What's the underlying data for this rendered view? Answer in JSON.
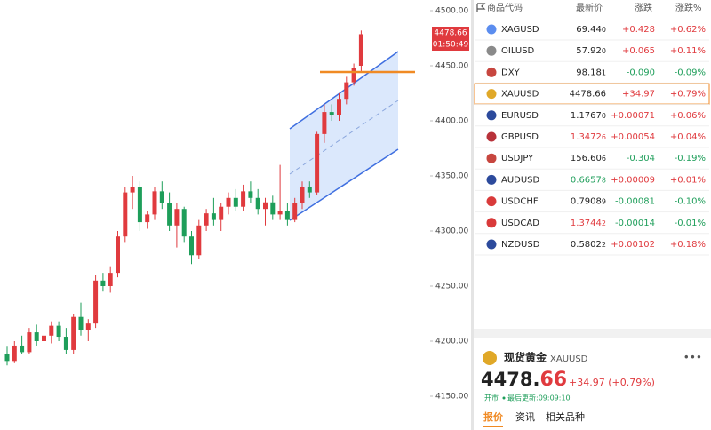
{
  "chart_data": {
    "type": "candlestick",
    "up_color": "#e03a3e",
    "down_color": "#1e9e5a",
    "ylim": [
      4130,
      4510
    ],
    "yticks": [
      {
        "value": 4500,
        "label": "4500.00"
      },
      {
        "value": 4450,
        "label": "4450.00"
      },
      {
        "value": 4400,
        "label": "4400.00"
      },
      {
        "value": 4350,
        "label": "4350.00"
      },
      {
        "value": 4300,
        "label": "4300.00"
      },
      {
        "value": 4250,
        "label": "4250.00"
      },
      {
        "value": 4200,
        "label": "4200.00"
      },
      {
        "value": 4150,
        "label": "4150.00"
      }
    ],
    "price_tag": "4478.66",
    "countdown": "01:50:49",
    "candles": [
      {
        "o": 4188,
        "h": 4195,
        "l": 4178,
        "c": 4182
      },
      {
        "o": 4182,
        "h": 4200,
        "l": 4180,
        "c": 4196
      },
      {
        "o": 4196,
        "h": 4205,
        "l": 4188,
        "c": 4190
      },
      {
        "o": 4190,
        "h": 4212,
        "l": 4188,
        "c": 4208
      },
      {
        "o": 4208,
        "h": 4215,
        "l": 4196,
        "c": 4200
      },
      {
        "o": 4200,
        "h": 4210,
        "l": 4195,
        "c": 4205
      },
      {
        "o": 4205,
        "h": 4218,
        "l": 4198,
        "c": 4214
      },
      {
        "o": 4214,
        "h": 4218,
        "l": 4200,
        "c": 4204
      },
      {
        "o": 4204,
        "h": 4212,
        "l": 4188,
        "c": 4192
      },
      {
        "o": 4192,
        "h": 4225,
        "l": 4188,
        "c": 4222
      },
      {
        "o": 4222,
        "h": 4235,
        "l": 4205,
        "c": 4210
      },
      {
        "o": 4210,
        "h": 4220,
        "l": 4200,
        "c": 4216
      },
      {
        "o": 4216,
        "h": 4260,
        "l": 4212,
        "c": 4255
      },
      {
        "o": 4255,
        "h": 4262,
        "l": 4245,
        "c": 4250
      },
      {
        "o": 4250,
        "h": 4268,
        "l": 4244,
        "c": 4262
      },
      {
        "o": 4262,
        "h": 4300,
        "l": 4258,
        "c": 4295
      },
      {
        "o": 4295,
        "h": 4340,
        "l": 4290,
        "c": 4335
      },
      {
        "o": 4335,
        "h": 4350,
        "l": 4320,
        "c": 4340
      },
      {
        "o": 4340,
        "h": 4345,
        "l": 4300,
        "c": 4308
      },
      {
        "o": 4308,
        "h": 4318,
        "l": 4302,
        "c": 4315
      },
      {
        "o": 4315,
        "h": 4340,
        "l": 4310,
        "c": 4336
      },
      {
        "o": 4336,
        "h": 4345,
        "l": 4320,
        "c": 4325
      },
      {
        "o": 4325,
        "h": 4335,
        "l": 4300,
        "c": 4305
      },
      {
        "o": 4305,
        "h": 4325,
        "l": 4285,
        "c": 4320
      },
      {
        "o": 4320,
        "h": 4322,
        "l": 4290,
        "c": 4295
      },
      {
        "o": 4295,
        "h": 4300,
        "l": 4270,
        "c": 4278
      },
      {
        "o": 4278,
        "h": 4310,
        "l": 4275,
        "c": 4305
      },
      {
        "o": 4305,
        "h": 4320,
        "l": 4300,
        "c": 4316
      },
      {
        "o": 4316,
        "h": 4330,
        "l": 4305,
        "c": 4310
      },
      {
        "o": 4310,
        "h": 4325,
        "l": 4300,
        "c": 4322
      },
      {
        "o": 4322,
        "h": 4335,
        "l": 4315,
        "c": 4330
      },
      {
        "o": 4330,
        "h": 4338,
        "l": 4318,
        "c": 4322
      },
      {
        "o": 4322,
        "h": 4342,
        "l": 4318,
        "c": 4336
      },
      {
        "o": 4336,
        "h": 4345,
        "l": 4325,
        "c": 4330
      },
      {
        "o": 4330,
        "h": 4338,
        "l": 4315,
        "c": 4320
      },
      {
        "o": 4320,
        "h": 4330,
        "l": 4305,
        "c": 4326
      },
      {
        "o": 4326,
        "h": 4332,
        "l": 4310,
        "c": 4315
      },
      {
        "o": 4315,
        "h": 4360,
        "l": 4310,
        "c": 4318
      },
      {
        "o": 4318,
        "h": 4325,
        "l": 4305,
        "c": 4310
      },
      {
        "o": 4310,
        "h": 4330,
        "l": 4308,
        "c": 4325
      },
      {
        "o": 4325,
        "h": 4345,
        "l": 4320,
        "c": 4340
      },
      {
        "o": 4340,
        "h": 4345,
        "l": 4330,
        "c": 4335
      },
      {
        "o": 4335,
        "h": 4390,
        "l": 4333,
        "c": 4388
      },
      {
        "o": 4388,
        "h": 4415,
        "l": 4380,
        "c": 4408
      },
      {
        "o": 4408,
        "h": 4415,
        "l": 4400,
        "c": 4405
      },
      {
        "o": 4405,
        "h": 4425,
        "l": 4400,
        "c": 4420
      },
      {
        "o": 4420,
        "h": 4440,
        "l": 4415,
        "c": 4435
      },
      {
        "o": 4435,
        "h": 4452,
        "l": 4432,
        "c": 4448
      },
      {
        "o": 4450,
        "h": 4482,
        "l": 4445,
        "c": 4478.66
      }
    ]
  },
  "watchlist": {
    "headers": [
      "商品代码",
      "最新价",
      "涨跌",
      "涨跌%"
    ],
    "rows": [
      {
        "symbol": "XAGUSD",
        "price": "69.44",
        "tail": "0",
        "change": "+0.428",
        "pct": "+0.62%",
        "price_color": "#222",
        "icon": "#5b8def"
      },
      {
        "symbol": "OILUSD",
        "price": "57.92",
        "tail": "0",
        "change": "+0.065",
        "pct": "+0.11%",
        "price_color": "#222",
        "icon": "#8a8a8a"
      },
      {
        "symbol": "DXY",
        "price": "98.18",
        "tail": "1",
        "change": "-0.090",
        "pct": "-0.09%",
        "price_color": "#222",
        "icon": "#c7463f"
      },
      {
        "symbol": "XAUUSD",
        "price": "4478.66",
        "tail": "",
        "change": "+34.97",
        "pct": "+0.79%",
        "price_color": "#222",
        "icon": "#e0a828"
      },
      {
        "symbol": "EURUSD",
        "price": "1.1767",
        "tail": "0",
        "change": "+0.00071",
        "pct": "+0.06%",
        "price_color": "#222",
        "icon": "#2c4a9c"
      },
      {
        "symbol": "GBPUSD",
        "price": "1.3472",
        "tail": "6",
        "change": "+0.00054",
        "pct": "+0.04%",
        "price_color": "#e03a3e",
        "icon": "#b8323a"
      },
      {
        "symbol": "USDJPY",
        "price": "156.60",
        "tail": "6",
        "change": "-0.304",
        "pct": "-0.19%",
        "price_color": "#222",
        "icon": "#c7463f"
      },
      {
        "symbol": "AUDUSD",
        "price": "0.6657",
        "tail": "8",
        "change": "+0.00009",
        "pct": "+0.01%",
        "price_color": "#1e9e5a",
        "icon": "#2c4a9c"
      },
      {
        "symbol": "USDCHF",
        "price": "0.7908",
        "tail": "9",
        "change": "-0.00081",
        "pct": "-0.10%",
        "price_color": "#222",
        "icon": "#d93a3a"
      },
      {
        "symbol": "USDCAD",
        "price": "1.3744",
        "tail": "2",
        "change": "-0.00014",
        "pct": "-0.01%",
        "price_color": "#e03a3e",
        "icon": "#d93a3a"
      },
      {
        "symbol": "NZDUSD",
        "price": "0.5802",
        "tail": "2",
        "change": "+0.00102",
        "pct": "+0.18%",
        "price_color": "#222",
        "icon": "#2c4a9c"
      }
    ]
  },
  "detail": {
    "name": "现货黄金",
    "symbol": "XAUUSD",
    "price_main": "4478.",
    "price_tail": "66",
    "change": "+34.97 (+0.79%)",
    "status": "开市",
    "updated": "最后更新:09:09:10",
    "tabs": [
      "报价",
      "资讯",
      "相关品种"
    ]
  }
}
